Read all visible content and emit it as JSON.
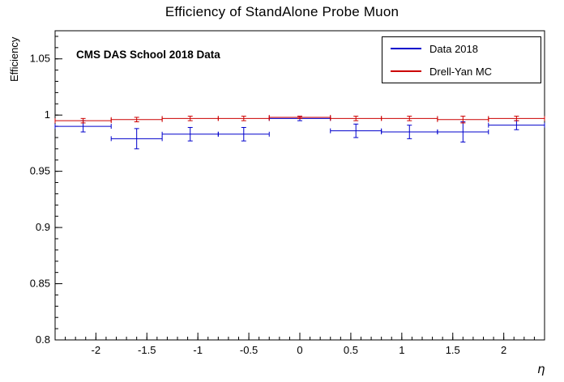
{
  "annotation": "CMS DAS School 2018 Data",
  "chart_data": {
    "type": "scatter",
    "title": "Efficiency of StandAlone Probe Muon",
    "xlabel": "η",
    "ylabel": "Efficiency",
    "xlim": [
      -2.4,
      2.4
    ],
    "ylim": [
      0.8,
      1.075
    ],
    "grid": false,
    "legend_position": "top-right",
    "x_ticks": [
      -2,
      -1.5,
      -1,
      -0.5,
      0,
      0.5,
      1,
      1.5,
      2
    ],
    "x_tick_labels": [
      "-2",
      "-1.5",
      "-1",
      "-0.5",
      "0",
      "0.5",
      "1",
      "1.5",
      "2"
    ],
    "x_minor_step": 0.1,
    "y_ticks": [
      0.8,
      0.85,
      0.9,
      0.95,
      1.0,
      1.05
    ],
    "y_tick_labels": [
      "0.8",
      "0.85",
      "0.9",
      "0.95",
      "1",
      "1.05"
    ],
    "y_minor_step": 0.01,
    "series": [
      {
        "name": "Data 2018",
        "color": "#0000cc",
        "points": [
          {
            "x": -2.125,
            "xerr": 0.275,
            "y": 0.99,
            "yerr": 0.005
          },
          {
            "x": -1.6,
            "xerr": 0.25,
            "y": 0.979,
            "yerr": 0.009
          },
          {
            "x": -1.075,
            "xerr": 0.275,
            "y": 0.983,
            "yerr": 0.006
          },
          {
            "x": -0.55,
            "xerr": 0.25,
            "y": 0.983,
            "yerr": 0.006
          },
          {
            "x": 0.0,
            "xerr": 0.3,
            "y": 0.997,
            "yerr": 0.002
          },
          {
            "x": 0.55,
            "xerr": 0.25,
            "y": 0.986,
            "yerr": 0.006
          },
          {
            "x": 1.075,
            "xerr": 0.275,
            "y": 0.985,
            "yerr": 0.006
          },
          {
            "x": 1.6,
            "xerr": 0.25,
            "y": 0.985,
            "yerr": 0.009
          },
          {
            "x": 2.125,
            "xerr": 0.275,
            "y": 0.991,
            "yerr": 0.004
          }
        ]
      },
      {
        "name": "Drell-Yan MC",
        "color": "#cc0000",
        "points": [
          {
            "x": -2.125,
            "xerr": 0.275,
            "y": 0.995,
            "yerr": 0.002
          },
          {
            "x": -1.6,
            "xerr": 0.25,
            "y": 0.996,
            "yerr": 0.002
          },
          {
            "x": -1.075,
            "xerr": 0.275,
            "y": 0.997,
            "yerr": 0.002
          },
          {
            "x": -0.55,
            "xerr": 0.25,
            "y": 0.997,
            "yerr": 0.002
          },
          {
            "x": 0.0,
            "xerr": 0.3,
            "y": 0.998,
            "yerr": 0.001
          },
          {
            "x": 0.55,
            "xerr": 0.25,
            "y": 0.997,
            "yerr": 0.002
          },
          {
            "x": 1.075,
            "xerr": 0.275,
            "y": 0.997,
            "yerr": 0.002
          },
          {
            "x": 1.6,
            "xerr": 0.25,
            "y": 0.996,
            "yerr": 0.003
          },
          {
            "x": 2.125,
            "xerr": 0.275,
            "y": 0.997,
            "yerr": 0.002
          }
        ]
      }
    ]
  }
}
